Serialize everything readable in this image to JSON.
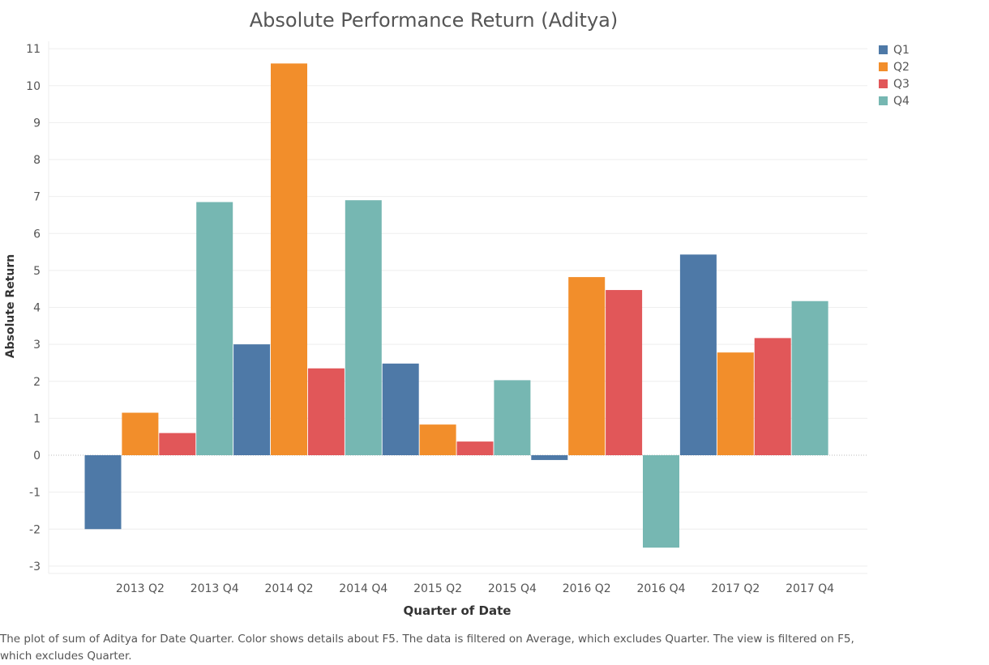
{
  "chart_data": {
    "type": "bar",
    "title": "Absolute Performance Return (Aditya)",
    "xlabel": "Quarter of Date",
    "ylabel": "Absolute Return",
    "ylim": [
      -3.2,
      11.2
    ],
    "yticks": [
      -3,
      -2,
      -1,
      0,
      1,
      2,
      3,
      4,
      5,
      6,
      7,
      8,
      9,
      10,
      11
    ],
    "x_tick_labels": [
      "2013 Q2",
      "2013 Q4",
      "2014 Q2",
      "2014 Q4",
      "2015 Q2",
      "2015 Q4",
      "2016 Q2",
      "2016 Q4",
      "2017 Q2",
      "2017 Q4"
    ],
    "categories": [
      "2013 Q1",
      "2013 Q2",
      "2013 Q3",
      "2013 Q4",
      "2014 Q1",
      "2014 Q2",
      "2014 Q3",
      "2014 Q4",
      "2015 Q1",
      "2015 Q2",
      "2015 Q3",
      "2015 Q4",
      "2016 Q1",
      "2016 Q2",
      "2016 Q3",
      "2016 Q4",
      "2017 Q1",
      "2017 Q2",
      "2017 Q3",
      "2017 Q4"
    ],
    "values": [
      -2.0,
      1.15,
      0.6,
      6.85,
      3.0,
      10.6,
      2.35,
      6.9,
      2.48,
      0.83,
      0.37,
      2.03,
      -0.13,
      4.82,
      4.47,
      -2.5,
      5.43,
      2.78,
      3.17,
      4.17
    ],
    "color_by": [
      "Q1",
      "Q2",
      "Q3",
      "Q4",
      "Q1",
      "Q2",
      "Q3",
      "Q4",
      "Q1",
      "Q2",
      "Q3",
      "Q4",
      "Q1",
      "Q2",
      "Q3",
      "Q4",
      "Q1",
      "Q2",
      "Q3",
      "Q4"
    ],
    "legend": [
      {
        "name": "Q1",
        "color": "#4e79a7"
      },
      {
        "name": "Q2",
        "color": "#f28e2b"
      },
      {
        "name": "Q3",
        "color": "#e15759"
      },
      {
        "name": "Q4",
        "color": "#76b7b2"
      }
    ],
    "legend_position": "top-right",
    "grid": true
  },
  "caption": "The plot of sum of Aditya for Date Quarter.  Color shows details about F5. The data is filtered on Average, which excludes Quarter. The view is filtered on F5, which excludes Quarter."
}
